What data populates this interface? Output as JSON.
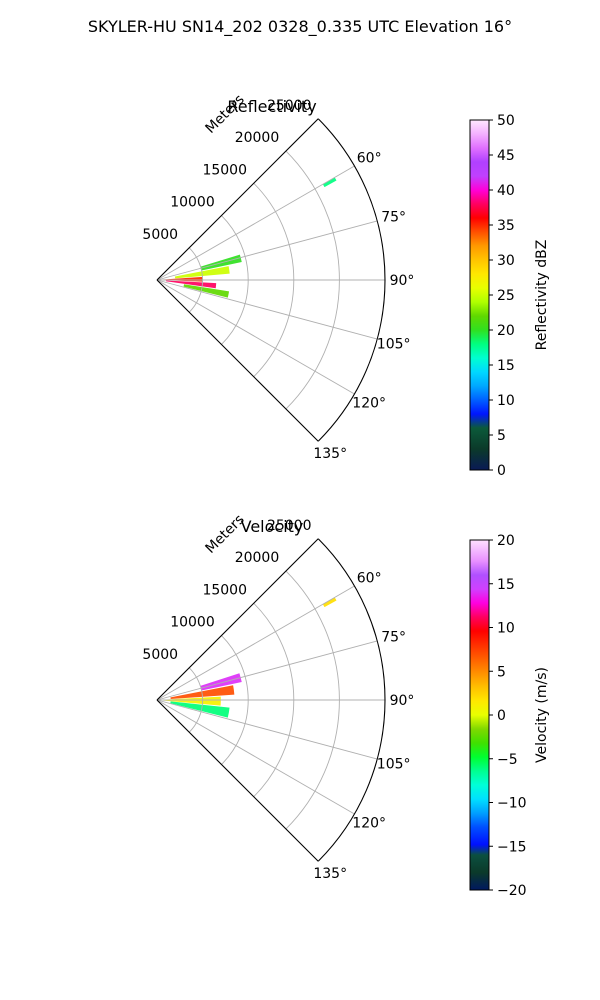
{
  "figure": {
    "suptitle": "SKYLER-HU  SN14_202  0328_0.335 UTC Elevation 16°"
  },
  "chart_data": [
    {
      "type": "heatmap",
      "subtype": "polar-sector",
      "title": "Reflectivity",
      "range_label": "Meters",
      "theta_range_deg": [
        45,
        135
      ],
      "theta_ticks": [
        "60°",
        "75°",
        "90°",
        "105°",
        "120°",
        "135°"
      ],
      "r_ticks": [
        5000,
        10000,
        15000,
        20000,
        25000
      ],
      "r_tick_labels": [
        "5000",
        "10000",
        "15000",
        "20000",
        "25000"
      ],
      "r_max": 25000,
      "grid": true,
      "colorbar": {
        "label": "Reflectivity dBZ",
        "ticks": [
          "0",
          "5",
          "10",
          "15",
          "20",
          "25",
          "30",
          "35",
          "40",
          "45",
          "50"
        ],
        "min": 0,
        "max": 50
      },
      "echo_regions": [
        {
          "theta_range": [
            73,
            78
          ],
          "r_range": [
            5000,
            9500
          ],
          "dbz": 20
        },
        {
          "theta_range": [
            79,
            85
          ],
          "r_range": [
            2000,
            8000
          ],
          "dbz": 25
        },
        {
          "theta_range": [
            86,
            92
          ],
          "r_range": [
            500,
            5000
          ],
          "dbz": 35
        },
        {
          "theta_range": [
            93,
            98
          ],
          "r_range": [
            1000,
            6500
          ],
          "dbz": 38
        },
        {
          "theta_range": [
            99,
            104
          ],
          "r_range": [
            3000,
            8000
          ],
          "dbz": 22
        },
        {
          "theta_range": [
            60,
            61
          ],
          "r_range": [
            21000,
            22500
          ],
          "dbz": 18
        }
      ]
    },
    {
      "type": "heatmap",
      "subtype": "polar-sector",
      "title": "Velocity",
      "range_label": "Meters",
      "theta_range_deg": [
        45,
        135
      ],
      "theta_ticks": [
        "60°",
        "75°",
        "90°",
        "105°",
        "120°",
        "135°"
      ],
      "r_ticks": [
        5000,
        10000,
        15000,
        20000,
        25000
      ],
      "r_tick_labels": [
        "5000",
        "10000",
        "15000",
        "20000",
        "25000"
      ],
      "r_max": 25000,
      "grid": true,
      "colorbar": {
        "label": "Velocity (m/s)",
        "ticks": [
          "−20",
          "−15",
          "−10",
          "−5",
          "0",
          "5",
          "10",
          "15",
          "20"
        ],
        "min": -20,
        "max": 20
      },
      "echo_regions": [
        {
          "theta_range": [
            72,
            78
          ],
          "r_range": [
            5000,
            9500
          ],
          "velocity": 14
        },
        {
          "theta_range": [
            79,
            86
          ],
          "r_range": [
            1500,
            8500
          ],
          "velocity": 7
        },
        {
          "theta_range": [
            87,
            95
          ],
          "r_range": [
            500,
            7000
          ],
          "velocity": 1
        },
        {
          "theta_range": [
            96,
            104
          ],
          "r_range": [
            1500,
            8000
          ],
          "velocity": -6
        },
        {
          "theta_range": [
            60,
            61
          ],
          "r_range": [
            21000,
            22500
          ],
          "velocity": 2
        }
      ]
    }
  ]
}
